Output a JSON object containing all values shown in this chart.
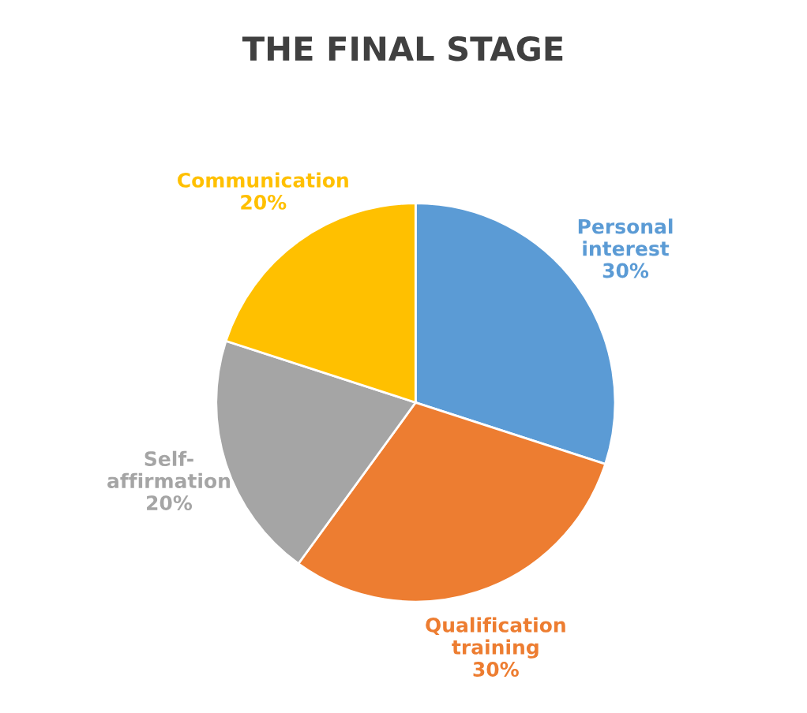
{
  "chart_data": {
    "type": "pie",
    "title": "THE FINAL STAGE",
    "categories": [
      "Personal interest",
      "Qualification training",
      "Self-affirmation",
      "Communication"
    ],
    "values": [
      30,
      30,
      20,
      20
    ],
    "value_labels": [
      "30%",
      "30%",
      "20%",
      "20%"
    ],
    "colors": [
      "#5b9bd5",
      "#ed7d31",
      "#a5a5a5",
      "#ffc000"
    ],
    "legend": false
  }
}
